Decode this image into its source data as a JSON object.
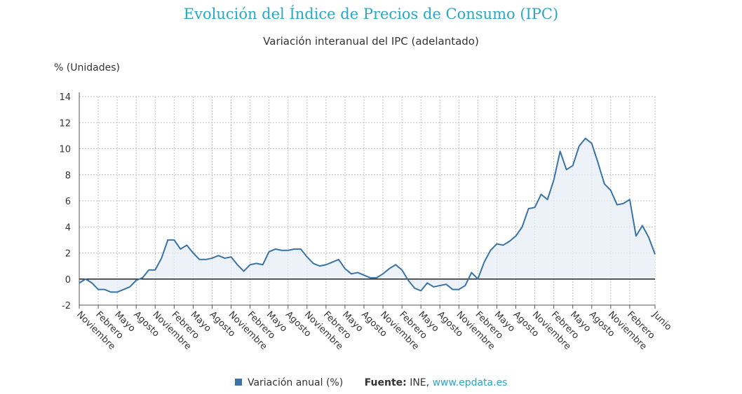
{
  "chart_data": {
    "type": "area",
    "title": "Evolución del Índice de Precios de Consumo (IPC)",
    "subtitle": "Variación interanual del IPC (adelantado)",
    "ylabel": "% (Unidades)",
    "ylim": [
      -2,
      14
    ],
    "yticks": [
      -2,
      0,
      2,
      4,
      6,
      8,
      10,
      12,
      14
    ],
    "grid": true,
    "legend_position": "bottom",
    "x_tick_labels": [
      "Noviembre",
      "Febrero",
      "Mayo",
      "Agosto",
      "Noviembre",
      "Febrero",
      "Mayo",
      "Agosto",
      "Noviembre",
      "Febrero",
      "Mayo",
      "Agosto",
      "Noviembre",
      "Febrero",
      "Mayo",
      "Agosto",
      "Noviembre",
      "Febrero",
      "Mayo",
      "Agosto",
      "Noviembre",
      "Febrero",
      "Mayo",
      "Agosto",
      "Noviembre",
      "Febrero",
      "Mayo",
      "Agosto",
      "Noviembre",
      "Febrero",
      "Junio"
    ],
    "series": [
      {
        "name": "Variación anual (%)",
        "color": "#3a73a5",
        "values": [
          -0.3,
          0.0,
          -0.3,
          -0.8,
          -0.8,
          -1.0,
          -1.0,
          -0.8,
          -0.6,
          -0.1,
          0.1,
          0.7,
          0.7,
          1.6,
          3.0,
          3.0,
          2.3,
          2.6,
          2.0,
          1.5,
          1.5,
          1.6,
          1.8,
          1.6,
          1.7,
          1.1,
          0.6,
          1.1,
          1.2,
          1.1,
          2.1,
          2.3,
          2.2,
          2.2,
          2.3,
          2.3,
          1.7,
          1.2,
          1.0,
          1.1,
          1.3,
          1.5,
          0.8,
          0.4,
          0.5,
          0.3,
          0.1,
          0.1,
          0.4,
          0.8,
          1.1,
          0.7,
          -0.1,
          -0.7,
          -0.9,
          -0.3,
          -0.6,
          -0.5,
          -0.4,
          -0.8,
          -0.8,
          -0.5,
          0.5,
          0.0,
          1.3,
          2.2,
          2.7,
          2.6,
          2.9,
          3.3,
          4.0,
          5.4,
          5.5,
          6.5,
          6.1,
          7.6,
          9.8,
          8.4,
          8.7,
          10.2,
          10.8,
          10.4,
          8.9,
          7.3,
          6.8,
          5.7,
          5.8,
          6.1,
          3.3,
          4.1,
          3.2,
          1.9
        ]
      }
    ]
  },
  "legend": {
    "label": "Variación anual (%)",
    "color": "#3a73a5"
  },
  "source": {
    "label": "Fuente:",
    "text": "INE,",
    "link": "www.epdata.es"
  }
}
